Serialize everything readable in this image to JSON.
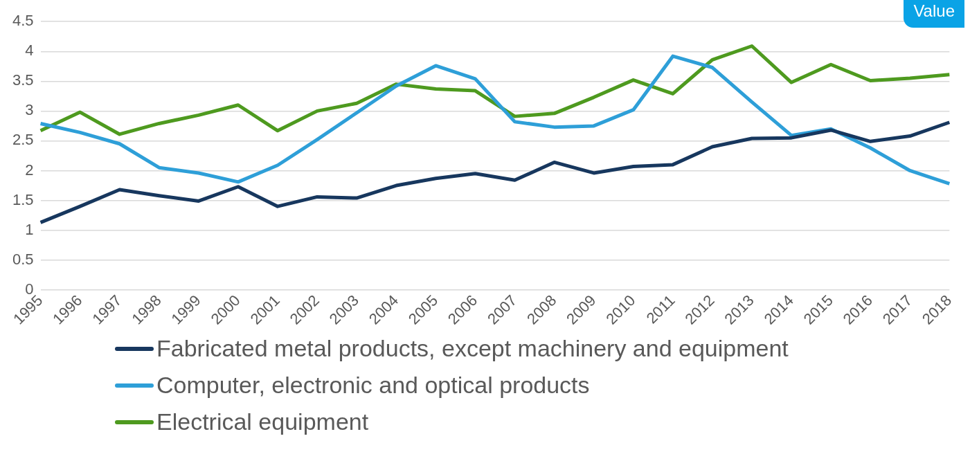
{
  "chart_data": {
    "type": "line",
    "categories": [
      "1995",
      "1996",
      "1997",
      "1998",
      "1999",
      "2000",
      "2001",
      "2002",
      "2003",
      "2004",
      "2005",
      "2006",
      "2007",
      "2008",
      "2009",
      "2010",
      "2011",
      "2012",
      "2013",
      "2014",
      "2015",
      "2016",
      "2017",
      "2018"
    ],
    "series": [
      {
        "name": "Fabricated metal products, except machinery and equipment",
        "color": "#17375e",
        "values": [
          1.13,
          1.4,
          1.68,
          1.58,
          1.49,
          1.73,
          1.4,
          1.56,
          1.54,
          1.75,
          1.87,
          1.95,
          1.84,
          2.14,
          1.96,
          2.07,
          2.1,
          2.4,
          2.54,
          2.55,
          2.68,
          2.49,
          2.58,
          2.81
        ]
      },
      {
        "name": "Computer, electronic and optical products",
        "color": "#2e9fd8",
        "values": [
          2.79,
          2.64,
          2.45,
          2.05,
          1.96,
          1.81,
          2.09,
          2.52,
          2.97,
          3.42,
          3.76,
          3.54,
          2.82,
          2.73,
          2.75,
          3.02,
          3.92,
          3.73,
          3.15,
          2.59,
          2.7,
          2.38,
          2.0,
          1.78
        ]
      },
      {
        "name": "Electrical equipment",
        "color": "#4e9a1f",
        "values": [
          2.67,
          2.98,
          2.61,
          2.79,
          2.93,
          3.1,
          2.67,
          3.0,
          3.13,
          3.45,
          3.37,
          3.34,
          2.91,
          2.96,
          3.23,
          3.52,
          3.29,
          3.86,
          4.09,
          3.48,
          3.78,
          3.51,
          3.55,
          3.61
        ]
      }
    ],
    "ylim": [
      0,
      4.5
    ],
    "yticks": [
      0,
      0.5,
      1,
      1.5,
      2,
      2.5,
      3,
      3.5,
      4,
      4.5
    ],
    "grid": "y",
    "legend": "bottom",
    "marker": "none",
    "line_style": "solid",
    "annotations": [
      "Value"
    ]
  }
}
